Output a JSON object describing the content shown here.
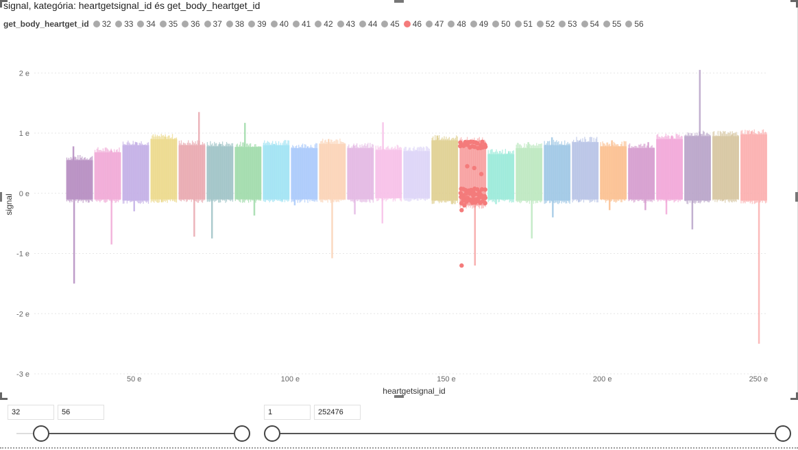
{
  "visual": {
    "title": "signal, kategória: heartgetsignal_id és get_body_heartget_id"
  },
  "legend": {
    "title": "get_body_heartget_id",
    "items": [
      "32",
      "33",
      "34",
      "35",
      "36",
      "37",
      "38",
      "39",
      "40",
      "41",
      "42",
      "43",
      "44",
      "45",
      "46",
      "47",
      "48",
      "49",
      "50",
      "51",
      "52",
      "53",
      "54",
      "55",
      "56"
    ],
    "highlighted": "46",
    "highlight_color": "#f47b7b",
    "default_color": "#aaaaaa"
  },
  "chart_data": {
    "type": "scatter",
    "xlabel": "heartgetsignal_id",
    "ylabel": "signal",
    "xlim": [
      18,
      253
    ],
    "ylim": [
      -3,
      2.3
    ],
    "x_ticks": [
      50,
      100,
      150,
      200,
      250
    ],
    "x_tick_labels": [
      "50 e",
      "100 e",
      "150 e",
      "200 e",
      "250 e"
    ],
    "y_ticks": [
      2,
      1,
      0,
      -1,
      -2,
      -3
    ],
    "y_tick_labels": [
      "2 e",
      "1 e",
      "0 e",
      "-1 e",
      "-2 e",
      "-3 e"
    ],
    "grid": true,
    "series": [
      {
        "name": "32",
        "x_range": [
          28,
          37
        ],
        "high": 0.55,
        "low": -0.1,
        "spike_max": 0.78,
        "spike_min": -1.5,
        "color": "#b58bc0"
      },
      {
        "name": "33",
        "x_range": [
          37,
          46
        ],
        "high": 0.68,
        "low": -0.1,
        "spike_max": 0.72,
        "spike_min": -0.85,
        "color": "#f0a8d6"
      },
      {
        "name": "34",
        "x_range": [
          46,
          55
        ],
        "high": 0.8,
        "low": -0.12,
        "spike_max": 0.85,
        "spike_min": -0.3,
        "color": "#c3aee6"
      },
      {
        "name": "35",
        "x_range": [
          55,
          64
        ],
        "high": 0.9,
        "low": -0.1,
        "spike_max": 0.94,
        "spike_min": -0.15,
        "color": "#ecd98a"
      },
      {
        "name": "36",
        "x_range": [
          64,
          73
        ],
        "high": 0.8,
        "low": -0.1,
        "spike_max": 1.35,
        "spike_min": -0.72,
        "color": "#e9a8af"
      },
      {
        "name": "37",
        "x_range": [
          73,
          82
        ],
        "high": 0.78,
        "low": -0.1,
        "spike_max": 0.82,
        "spike_min": -0.75,
        "color": "#9ec3c6"
      },
      {
        "name": "38",
        "x_range": [
          82,
          91
        ],
        "high": 0.77,
        "low": -0.1,
        "spike_max": 1.17,
        "spike_min": -0.37,
        "color": "#9fdbaa"
      },
      {
        "name": "39",
        "x_range": [
          91,
          100
        ],
        "high": 0.8,
        "low": -0.1,
        "spike_max": 0.82,
        "spike_min": -0.12,
        "color": "#9fe3f4"
      },
      {
        "name": "40",
        "x_range": [
          100,
          109
        ],
        "high": 0.75,
        "low": -0.1,
        "spike_max": 0.78,
        "spike_min": -0.2,
        "color": "#a9c9fb"
      },
      {
        "name": "41",
        "x_range": [
          109,
          118
        ],
        "high": 0.82,
        "low": -0.1,
        "spike_max": 0.9,
        "spike_min": -1.08,
        "color": "#fbd3b6"
      },
      {
        "name": "42",
        "x_range": [
          118,
          127
        ],
        "high": 0.75,
        "low": -0.1,
        "spike_max": 0.8,
        "spike_min": -0.35,
        "color": "#e3b7e3"
      },
      {
        "name": "43",
        "x_range": [
          127,
          136
        ],
        "high": 0.72,
        "low": -0.08,
        "spike_max": 1.18,
        "spike_min": -0.5,
        "color": "#f7bfe8"
      },
      {
        "name": "44",
        "x_range": [
          136,
          145
        ],
        "high": 0.7,
        "low": -0.08,
        "spike_max": 0.72,
        "spike_min": -0.1,
        "color": "#dcd4f7"
      },
      {
        "name": "45",
        "x_range": [
          145,
          154
        ],
        "high": 0.88,
        "low": -0.12,
        "spike_max": 0.96,
        "spike_min": -0.18,
        "color": "#dfcf90"
      },
      {
        "name": "46",
        "x_range": [
          154,
          163
        ],
        "high": 0.85,
        "low": -0.2,
        "spike_max": 0.88,
        "spike_min": -1.2,
        "color": "#f47b7b"
      },
      {
        "name": "47",
        "x_range": [
          163,
          172
        ],
        "high": 0.65,
        "low": -0.1,
        "spike_max": 0.7,
        "spike_min": -0.18,
        "color": "#99ead9"
      },
      {
        "name": "48",
        "x_range": [
          172,
          181
        ],
        "high": 0.75,
        "low": -0.12,
        "spike_max": 0.85,
        "spike_min": -0.75,
        "color": "#bce8bf"
      },
      {
        "name": "49",
        "x_range": [
          181,
          190
        ],
        "high": 0.8,
        "low": -0.12,
        "spike_max": 0.93,
        "spike_min": -0.4,
        "color": "#9ec7e5"
      },
      {
        "name": "50",
        "x_range": [
          190,
          199
        ],
        "high": 0.85,
        "low": -0.1,
        "spike_max": 0.88,
        "spike_min": -0.15,
        "color": "#b7c3e6"
      },
      {
        "name": "51",
        "x_range": [
          199,
          208
        ],
        "high": 0.78,
        "low": -0.1,
        "spike_max": 0.88,
        "spike_min": -0.28,
        "color": "#fbbf8f"
      },
      {
        "name": "52",
        "x_range": [
          208,
          217
        ],
        "high": 0.75,
        "low": -0.1,
        "spike_max": 0.85,
        "spike_min": -0.28,
        "color": "#d59bce"
      },
      {
        "name": "53",
        "x_range": [
          217,
          226
        ],
        "high": 0.9,
        "low": -0.1,
        "spike_max": 0.96,
        "spike_min": -0.35,
        "color": "#f2a6d8"
      },
      {
        "name": "54",
        "x_range": [
          226,
          235
        ],
        "high": 0.95,
        "low": -0.12,
        "spike_max": 2.05,
        "spike_min": -0.6,
        "color": "#b8a3c8"
      },
      {
        "name": "55",
        "x_range": [
          235,
          244
        ],
        "high": 0.95,
        "low": -0.1,
        "spike_max": 0.98,
        "spike_min": -0.12,
        "color": "#d6c59f"
      },
      {
        "name": "56",
        "x_range": [
          244,
          253
        ],
        "high": 0.98,
        "low": -0.12,
        "spike_max": 1.03,
        "spike_min": -2.5,
        "color": "#fbaeae"
      }
    ]
  },
  "slicer_left": {
    "min_value": "32",
    "max_value": "56",
    "range": [
      32,
      56
    ],
    "selected": [
      32,
      56
    ]
  },
  "slicer_right": {
    "min_value": "1",
    "max_value": "252476",
    "range": [
      1,
      252476
    ],
    "selected": [
      1,
      252476
    ]
  }
}
